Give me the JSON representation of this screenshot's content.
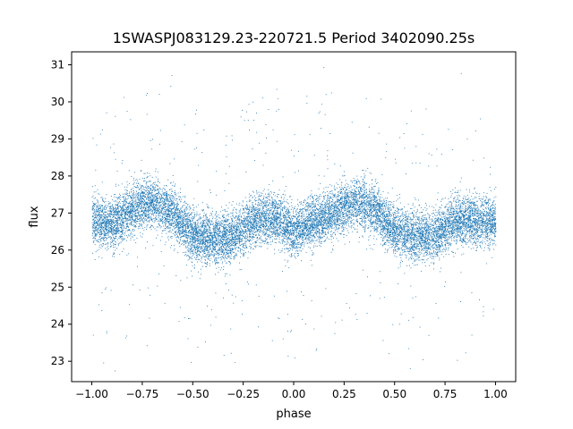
{
  "chart_data": {
    "type": "scatter",
    "title": "1SWASPJ083129.23-220721.5 Period 3402090.25s",
    "xlabel": "phase",
    "ylabel": "flux",
    "xlim": [
      -1.1,
      1.1
    ],
    "ylim": [
      22.45,
      31.35
    ],
    "xticks": [
      -1.0,
      -0.75,
      -0.5,
      -0.25,
      0.0,
      0.25,
      0.5,
      0.75,
      1.0
    ],
    "xtick_labels": [
      "−1.00",
      "−0.75",
      "−0.50",
      "−0.25",
      "0.00",
      "0.25",
      "0.50",
      "0.75",
      "1.00"
    ],
    "yticks": [
      23,
      24,
      25,
      26,
      27,
      28,
      29,
      30,
      31
    ],
    "ytick_labels": [
      "23",
      "24",
      "25",
      "26",
      "27",
      "28",
      "29",
      "30",
      "31"
    ],
    "grid": false,
    "point_color": "#1f77b4",
    "series": [
      {
        "points_description": "dense phase-folded light curve, mirrored over phase -1 to 1",
        "phase_trend": {
          "x": [
            -1.0,
            -0.9,
            -0.8,
            -0.7,
            -0.6,
            -0.5,
            -0.4,
            -0.3,
            -0.2,
            -0.1,
            0.0,
            0.1,
            0.2,
            0.3,
            0.4,
            0.5,
            0.6,
            0.7,
            0.8,
            0.9,
            1.0
          ],
          "y": [
            26.8,
            26.7,
            27.1,
            27.3,
            27.0,
            26.4,
            26.3,
            26.4,
            26.8,
            26.9,
            26.5,
            26.8,
            27.0,
            27.3,
            27.1,
            26.5,
            26.4,
            26.4,
            26.8,
            26.8,
            26.8
          ]
        },
        "scatter_spread": 0.6,
        "point_count": 14000
      }
    ]
  }
}
